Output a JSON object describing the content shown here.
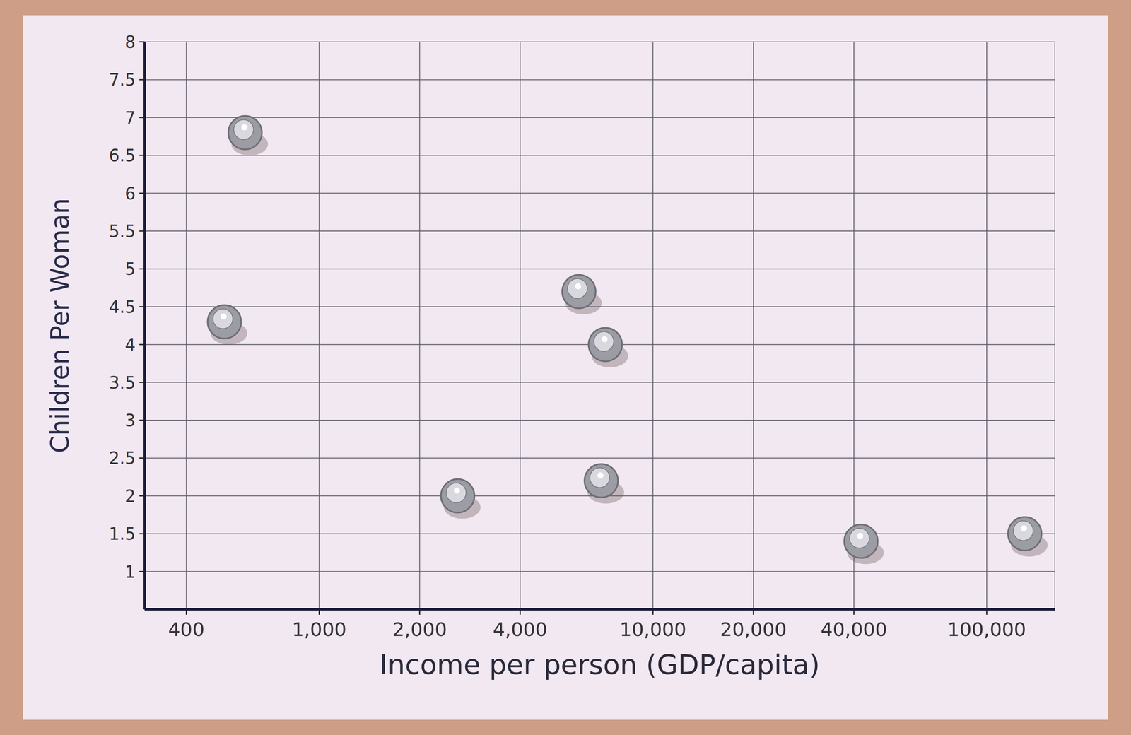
{
  "chart_data": {
    "type": "scatter",
    "x_label": "Income per person (GDP/capita)",
    "y_label": "Children Per Woman",
    "x": [
      600,
      520,
      6000,
      7200,
      2600,
      7000,
      42000,
      130000
    ],
    "values": [
      6.8,
      4.3,
      4.7,
      4.0,
      2.0,
      2.2,
      1.4,
      1.5
    ],
    "color": "#9c9ca4",
    "marker": "circle",
    "log": "x",
    "grid": true,
    "xlim": [
      300,
      160000
    ],
    "ylim": [
      0.5,
      8
    ],
    "xticks": [
      400,
      {
        "value": 1000,
        "label": "1,000"
      },
      {
        "value": 2000,
        "label": "2,000"
      },
      {
        "value": 4000,
        "label": "4,000"
      },
      {
        "value": 10000,
        "label": "10,000"
      },
      {
        "value": 20000,
        "label": "20,000"
      },
      {
        "value": 40000,
        "label": "40,000"
      },
      {
        "value": 100000,
        "label": "100,000"
      }
    ],
    "yticks": [
      1,
      1.5,
      2,
      2.5,
      3,
      3.5,
      4,
      4.5,
      5,
      5.5,
      6,
      6.5,
      7,
      7.5,
      8
    ]
  }
}
